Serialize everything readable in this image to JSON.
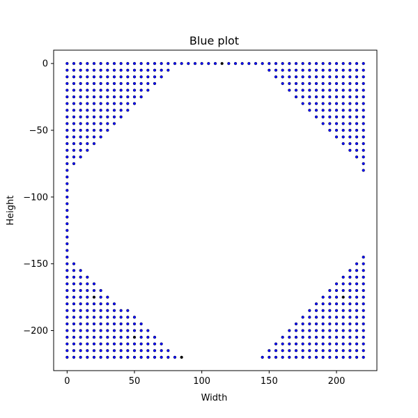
{
  "chart_data": {
    "type": "scatter",
    "title": "Blue plot",
    "xlabel": "Width",
    "ylabel": "Height",
    "xlim": [
      -10,
      230
    ],
    "ylim": [
      -230,
      10
    ],
    "xticks": [
      0,
      50,
      100,
      150,
      200
    ],
    "yticks": [
      0,
      -50,
      -100,
      -150,
      -200
    ],
    "xtick_labels": [
      "0",
      "50",
      "100",
      "150",
      "200"
    ],
    "ytick_labels": [
      "0",
      "−50",
      "−100",
      "−150",
      "−200"
    ],
    "grid": false,
    "grid_spacing": 5,
    "marker_color": "#0000ff",
    "marker_edge_color": "#000000",
    "corner_regions": {
      "top_left": {
        "x_when_y0": 80,
        "y_when_x0": -80
      },
      "top_right": {
        "x_when_y0": 145,
        "y_when_x220": -80
      },
      "bottom_left": {
        "x_when_y_min": 85,
        "y_when_x0": -145
      },
      "bottom_right": {
        "x_when_y_min": 145,
        "y_when_x220": -145
      }
    },
    "edge_rows": {
      "top": {
        "y": 0,
        "x_range": [
          0,
          220
        ]
      },
      "left": {
        "x": 0,
        "y_range": [
          -220,
          0
        ]
      }
    },
    "highlighted_points": [
      [
        115,
        0
      ],
      [
        80,
        -5
      ],
      [
        145,
        -5
      ],
      [
        5,
        -80
      ],
      [
        20,
        -175
      ],
      [
        205,
        -175
      ],
      [
        50,
        -205
      ],
      [
        85,
        -220
      ]
    ],
    "highlight_color": "#000000"
  }
}
